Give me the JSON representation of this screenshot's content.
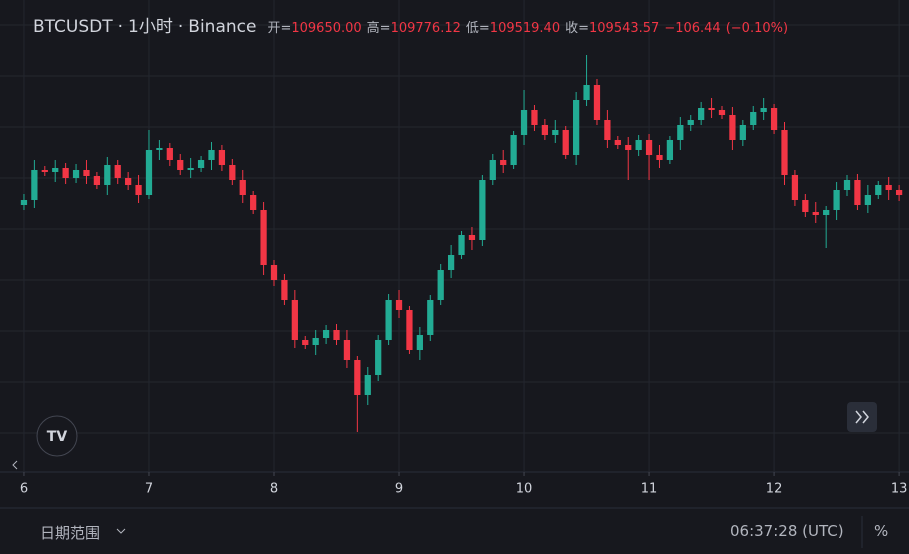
{
  "header": {
    "symbol": "BTCUSDT",
    "sep": "·",
    "interval": "1小时",
    "exchange": "Binance",
    "open_label": "开=",
    "open": "109650.00",
    "high_label": "高=",
    "high": "109776.12",
    "low_label": "低=",
    "low": "109519.40",
    "close_label": "收=",
    "close": "109543.57",
    "change": "−106.44",
    "change_pct": "(−0.10%)"
  },
  "chart_data": {
    "type": "candlestick",
    "up_color": "#22ab94",
    "down_color": "#f23645",
    "grid": true,
    "xlim": [
      -4.6,
      169.9
    ],
    "ylim": [
      106780,
      111500
    ],
    "xticks": [
      {
        "value": 0,
        "label": "6"
      },
      {
        "value": 24,
        "label": "7"
      },
      {
        "value": 48,
        "label": "8"
      },
      {
        "value": 72,
        "label": "9"
      },
      {
        "value": 96,
        "label": "10"
      },
      {
        "value": 120,
        "label": "11"
      },
      {
        "value": 144,
        "label": "12"
      },
      {
        "value": 168,
        "label": "13"
      }
    ],
    "x": [
      0,
      2,
      4,
      6,
      8,
      10,
      12,
      14,
      16,
      18,
      20,
      22,
      24,
      26,
      28,
      30,
      32,
      34,
      36,
      38,
      40,
      42,
      44,
      46,
      48,
      50,
      52,
      54,
      56,
      58,
      60,
      62,
      64,
      66,
      68,
      70,
      72,
      74,
      76,
      78,
      80,
      82,
      84,
      86,
      88,
      90,
      92,
      94,
      96,
      98,
      100,
      102,
      104,
      106,
      108,
      110,
      112,
      114,
      116,
      118,
      120,
      122,
      124,
      126,
      128,
      130,
      132,
      134,
      136,
      138,
      140,
      142,
      144,
      146,
      148,
      150,
      152,
      154,
      156,
      158,
      160,
      162,
      164,
      166,
      168
    ],
    "open": [
      109450,
      109500,
      109800,
      109780,
      109820,
      109720,
      109800,
      109740,
      109650,
      109850,
      109720,
      109650,
      109550,
      110000,
      110020,
      109900,
      109800,
      109820,
      109900,
      110000,
      109850,
      109700,
      109550,
      109400,
      108850,
      108700,
      108500,
      108100,
      108050,
      108120,
      108200,
      108100,
      107900,
      107550,
      107750,
      108100,
      108500,
      108400,
      108000,
      108150,
      108500,
      108800,
      108950,
      109150,
      109100,
      109700,
      109900,
      109850,
      110150,
      110400,
      110250,
      110150,
      110200,
      109950,
      110500,
      110650,
      110300,
      110100,
      110050,
      110000,
      110100,
      109950,
      109900,
      110100,
      110250,
      110300,
      110420,
      110400,
      110350,
      110100,
      110250,
      110380,
      110420,
      110200,
      109750,
      109500,
      109380,
      109350,
      109400,
      109600,
      109700,
      109450,
      109550,
      109650,
      109600
    ],
    "high": [
      109560,
      109900,
      109840,
      109900,
      109870,
      109860,
      109900,
      109780,
      109930,
      109900,
      109780,
      109750,
      110200,
      110100,
      110070,
      109960,
      109920,
      109940,
      110080,
      110050,
      109910,
      109800,
      109590,
      109480,
      108900,
      108760,
      108600,
      108140,
      108200,
      108250,
      108260,
      108200,
      107940,
      107830,
      108150,
      108560,
      108600,
      108440,
      108230,
      108550,
      108860,
      109050,
      109190,
      109230,
      109750,
      109960,
      110000,
      110190,
      110600,
      110450,
      110310,
      110300,
      110240,
      110580,
      110950,
      110710,
      110400,
      110140,
      110130,
      110150,
      110160,
      110050,
      110140,
      110330,
      110350,
      110480,
      110520,
      110440,
      110430,
      110300,
      110440,
      110520,
      110460,
      110280,
      109800,
      109560,
      109480,
      109440,
      109680,
      109750,
      109760,
      109650,
      109690,
      109730,
      109650
    ],
    "low": [
      109400,
      109420,
      109740,
      109680,
      109660,
      109670,
      109660,
      109610,
      109550,
      109660,
      109600,
      109470,
      109510,
      109900,
      109840,
      109750,
      109720,
      109780,
      109800,
      109790,
      109650,
      109470,
      109360,
      108750,
      108640,
      108450,
      108020,
      108010,
      107950,
      108060,
      108050,
      107820,
      107180,
      107450,
      107690,
      108050,
      108320,
      107960,
      107900,
      108090,
      108450,
      108720,
      108910,
      109000,
      109040,
      109650,
      109770,
      109810,
      110050,
      110190,
      110100,
      110070,
      109910,
      109850,
      110440,
      110250,
      110020,
      110010,
      109700,
      109940,
      109700,
      109820,
      109860,
      110000,
      110190,
      110250,
      110320,
      110310,
      110000,
      110040,
      110200,
      110300,
      110160,
      109650,
      109440,
      109330,
      109270,
      109020,
      109300,
      109540,
      109400,
      109370,
      109510,
      109500,
      109490
    ],
    "close": [
      109500,
      109800,
      109780,
      109820,
      109720,
      109800,
      109740,
      109650,
      109850,
      109720,
      109650,
      109550,
      110000,
      110020,
      109900,
      109800,
      109820,
      109900,
      110000,
      109850,
      109700,
      109550,
      109400,
      108850,
      108700,
      108500,
      108100,
      108050,
      108120,
      108200,
      108100,
      107900,
      107550,
      107750,
      108100,
      108500,
      108400,
      108000,
      108150,
      108500,
      108800,
      108950,
      109150,
      109100,
      109700,
      109900,
      109850,
      110150,
      110400,
      110250,
      110150,
      110200,
      109950,
      110500,
      110650,
      110300,
      110100,
      110050,
      110000,
      110100,
      109950,
      109900,
      110100,
      110250,
      110300,
      110420,
      110400,
      110350,
      110100,
      110250,
      110380,
      110420,
      110200,
      109750,
      109500,
      109380,
      109350,
      109400,
      109600,
      109700,
      109450,
      109550,
      109650,
      109600,
      109550
    ]
  },
  "footer": {
    "date_range": "日期范围",
    "time": "06:37:28 (UTC)",
    "percent": "%"
  }
}
